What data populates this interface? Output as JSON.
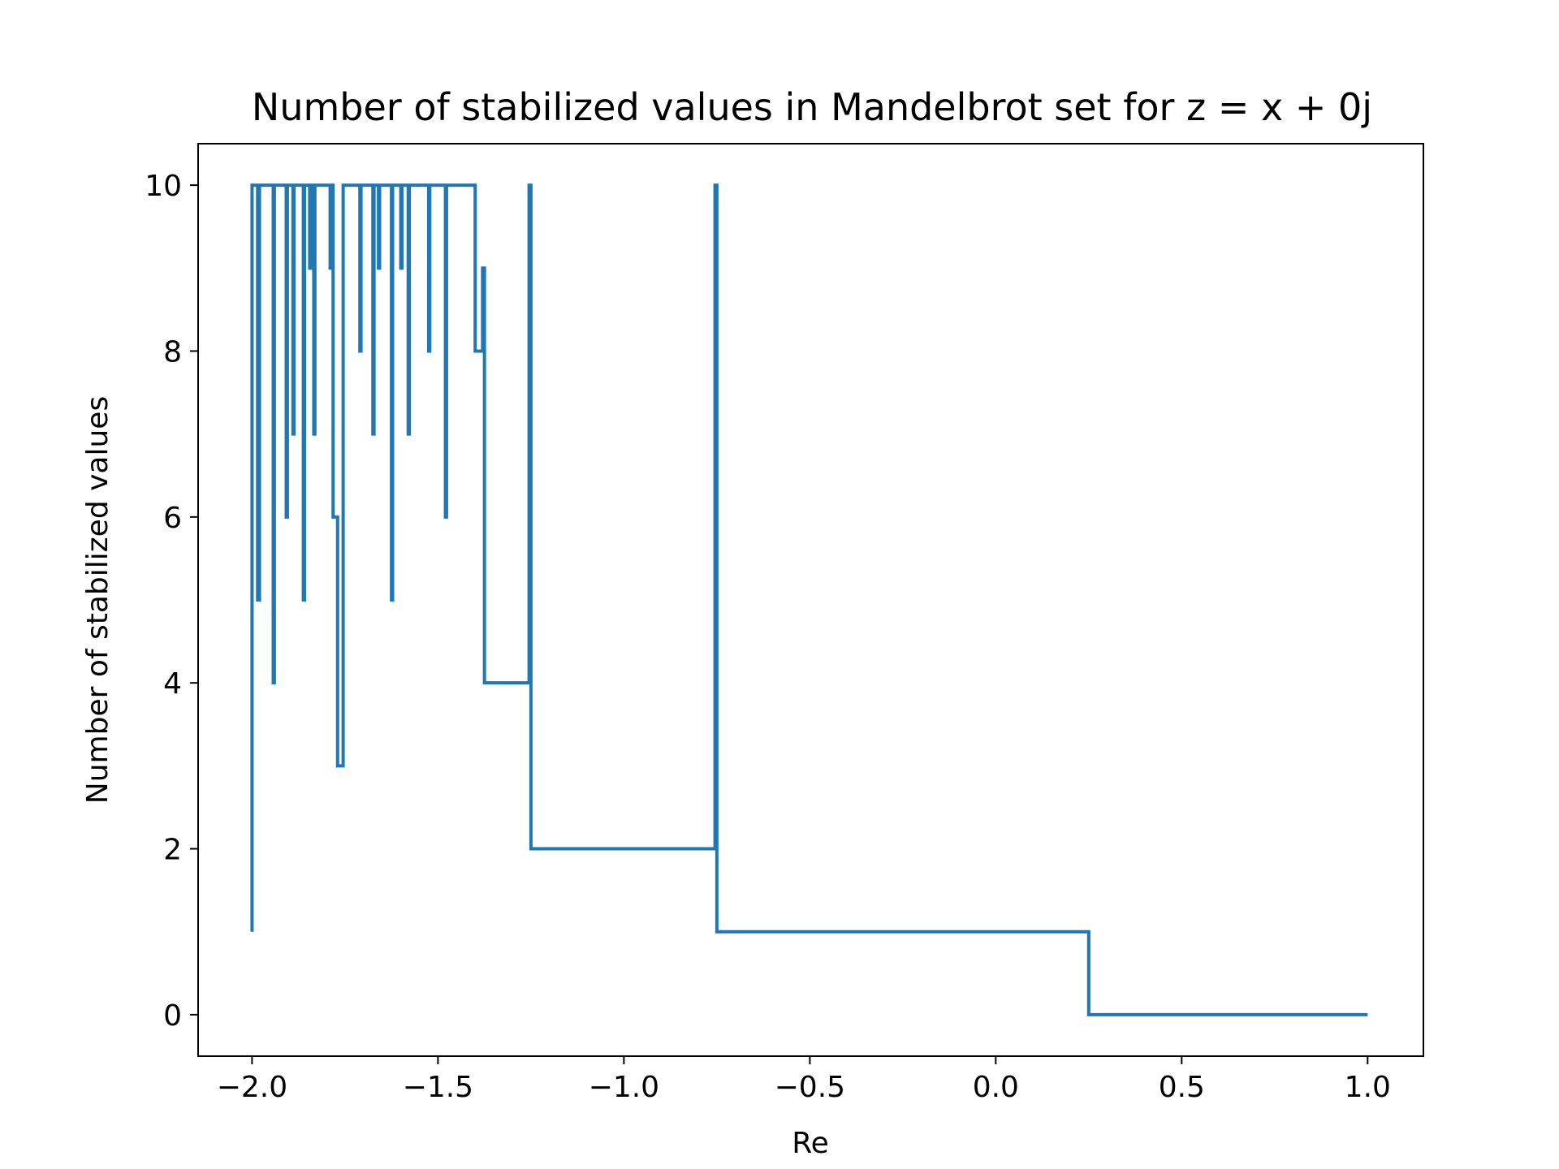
{
  "chart_data": {
    "type": "line",
    "drawstyle": "steps",
    "title": "Number of stabilized values in Mandelbrot set for z = x + 0j",
    "xlabel": "Re",
    "ylabel": "Number of stabilized values",
    "xlim": [
      -2.145,
      1.15
    ],
    "ylim": [
      -0.5,
      10.5
    ],
    "x_ticks": [
      -2.0,
      -1.5,
      -1.0,
      -0.5,
      0.0,
      0.5,
      1.0
    ],
    "x_tick_labels": [
      "−2.0",
      "−1.5",
      "−1.0",
      "−0.5",
      "0.0",
      "0.5",
      "1.0"
    ],
    "y_ticks": [
      0,
      2,
      4,
      6,
      8,
      10
    ],
    "y_tick_labels": [
      "0",
      "2",
      "4",
      "6",
      "8",
      "10"
    ],
    "line_color": "#1f77b4",
    "grid": false,
    "series": [
      {
        "name": "stabilized values",
        "points": [
          [
            -2.0,
            1
          ],
          [
            -2.0,
            10
          ],
          [
            -1.985,
            10
          ],
          [
            -1.985,
            5
          ],
          [
            -1.98,
            5
          ],
          [
            -1.98,
            10
          ],
          [
            -1.943,
            10
          ],
          [
            -1.943,
            4
          ],
          [
            -1.94,
            4
          ],
          [
            -1.94,
            10
          ],
          [
            -1.908,
            10
          ],
          [
            -1.908,
            6
          ],
          [
            -1.905,
            6
          ],
          [
            -1.905,
            10
          ],
          [
            -1.89,
            10
          ],
          [
            -1.89,
            7
          ],
          [
            -1.887,
            7
          ],
          [
            -1.887,
            10
          ],
          [
            -1.862,
            10
          ],
          [
            -1.862,
            5
          ],
          [
            -1.859,
            5
          ],
          [
            -1.859,
            10
          ],
          [
            -1.845,
            10
          ],
          [
            -1.845,
            9
          ],
          [
            -1.842,
            9
          ],
          [
            -1.842,
            10
          ],
          [
            -1.834,
            10
          ],
          [
            -1.834,
            7
          ],
          [
            -1.831,
            7
          ],
          [
            -1.831,
            10
          ],
          [
            -1.79,
            10
          ],
          [
            -1.79,
            9
          ],
          [
            -1.787,
            9
          ],
          [
            -1.787,
            10
          ],
          [
            -1.782,
            10
          ],
          [
            -1.782,
            6
          ],
          [
            -1.77,
            6
          ],
          [
            -1.77,
            3
          ],
          [
            -1.755,
            3
          ],
          [
            -1.755,
            10
          ],
          [
            -1.71,
            10
          ],
          [
            -1.71,
            8
          ],
          [
            -1.707,
            8
          ],
          [
            -1.707,
            10
          ],
          [
            -1.675,
            10
          ],
          [
            -1.675,
            7
          ],
          [
            -1.672,
            7
          ],
          [
            -1.672,
            10
          ],
          [
            -1.66,
            10
          ],
          [
            -1.66,
            9
          ],
          [
            -1.657,
            9
          ],
          [
            -1.657,
            10
          ],
          [
            -1.625,
            10
          ],
          [
            -1.625,
            5
          ],
          [
            -1.622,
            5
          ],
          [
            -1.622,
            10
          ],
          [
            -1.6,
            10
          ],
          [
            -1.6,
            9
          ],
          [
            -1.597,
            9
          ],
          [
            -1.597,
            10
          ],
          [
            -1.58,
            10
          ],
          [
            -1.58,
            7
          ],
          [
            -1.577,
            7
          ],
          [
            -1.577,
            10
          ],
          [
            -1.525,
            10
          ],
          [
            -1.525,
            8
          ],
          [
            -1.522,
            8
          ],
          [
            -1.522,
            10
          ],
          [
            -1.48,
            10
          ],
          [
            -1.48,
            6
          ],
          [
            -1.477,
            6
          ],
          [
            -1.477,
            10
          ],
          [
            -1.4,
            10
          ],
          [
            -1.4,
            8
          ],
          [
            -1.38,
            8
          ],
          [
            -1.38,
            9
          ],
          [
            -1.375,
            9
          ],
          [
            -1.375,
            4
          ],
          [
            -1.255,
            4
          ],
          [
            -1.255,
            10
          ],
          [
            -1.25,
            10
          ],
          [
            -1.25,
            2
          ],
          [
            -0.755,
            2
          ],
          [
            -0.755,
            10
          ],
          [
            -0.75,
            10
          ],
          [
            -0.75,
            1
          ],
          [
            0.25,
            1
          ],
          [
            0.25,
            0
          ],
          [
            1.0,
            0
          ]
        ]
      }
    ]
  }
}
